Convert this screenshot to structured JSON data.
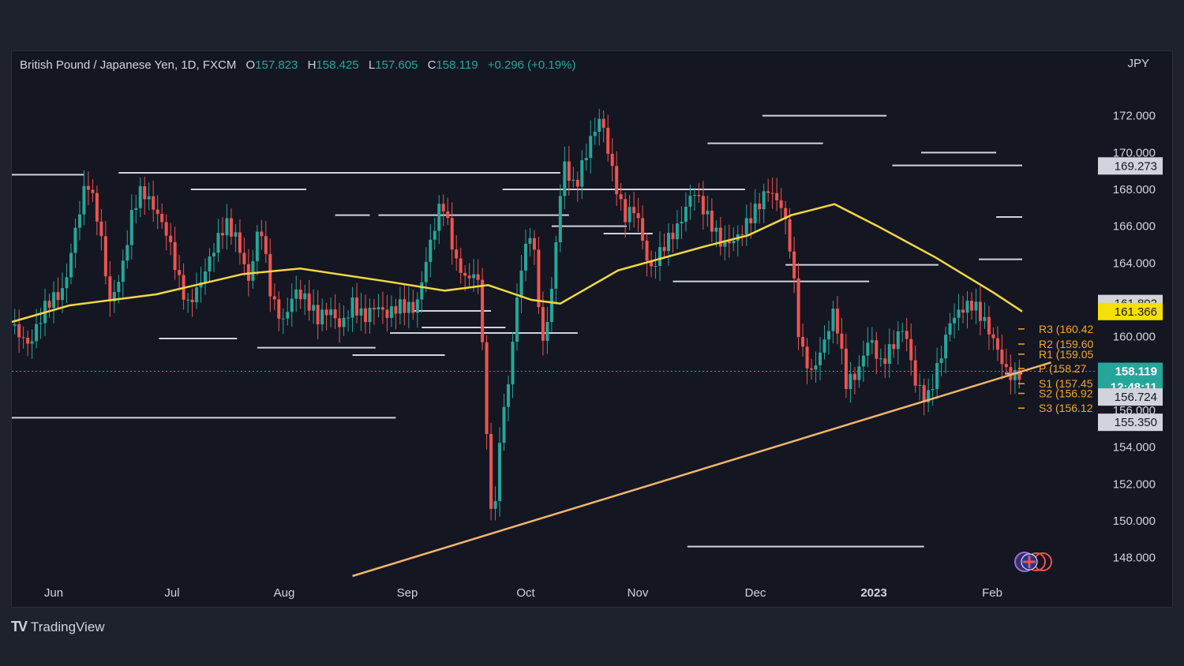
{
  "header": {
    "symbol": "British Pound / Japanese Yen, 1D, FXCM",
    "o_label": "O",
    "o_value": "157.823",
    "h_label": "H",
    "h_value": "158.425",
    "l_label": "L",
    "l_value": "157.605",
    "c_label": "C",
    "c_value": "158.119",
    "change": "+0.296 (+0.19%)"
  },
  "currency": "JPY",
  "brand": "TradingView",
  "colors": {
    "up": "#26a69a",
    "down": "#ef5350",
    "ma": "#f5d742",
    "trend": "#f3b56b",
    "pivot": "#f5a623",
    "bg": "#141722"
  },
  "chart_data": {
    "type": "candlestick",
    "instrument": "British Pound / Japanese Yen",
    "interval": "1D",
    "ylim": [
      147,
      174
    ],
    "y_ticks": [
      148,
      150,
      152,
      154,
      156,
      158,
      160,
      162,
      164,
      166,
      168,
      170,
      172
    ],
    "y_tick_labels": [
      "148.000",
      "150.000",
      "152.000",
      "154.000",
      "156.000",
      "158.000",
      "160.000",
      "162.000",
      "164.000",
      "166.000",
      "168.000",
      "170.000",
      "172.000"
    ],
    "x_months": [
      "Jun",
      "Jul",
      "Aug",
      "Sep",
      "Oct",
      "Nov",
      "Dec",
      "2023",
      "Feb"
    ],
    "price_points": [
      [
        0,
        160.6
      ],
      [
        6,
        159.5
      ],
      [
        12,
        161.8
      ],
      [
        18,
        162.5
      ],
      [
        22,
        165.8
      ],
      [
        26,
        168.6
      ],
      [
        30,
        166.3
      ],
      [
        34,
        161.8
      ],
      [
        38,
        163.5
      ],
      [
        42,
        167.0
      ],
      [
        45,
        168.0
      ],
      [
        50,
        166.8
      ],
      [
        54,
        165.5
      ],
      [
        58,
        163.0
      ],
      [
        61,
        161.7
      ],
      [
        65,
        162.8
      ],
      [
        70,
        164.8
      ],
      [
        74,
        166.2
      ],
      [
        78,
        165.3
      ],
      [
        82,
        163.0
      ],
      [
        86,
        166.3
      ],
      [
        90,
        162.0
      ],
      [
        94,
        160.8
      ],
      [
        98,
        162.5
      ],
      [
        102,
        162.0
      ],
      [
        106,
        161.0
      ],
      [
        110,
        161.5
      ],
      [
        114,
        160.5
      ],
      [
        118,
        161.8
      ],
      [
        122,
        161.0
      ],
      [
        126,
        161.7
      ],
      [
        130,
        161.2
      ],
      [
        134,
        161.7
      ],
      [
        140,
        161.5
      ],
      [
        144,
        164.5
      ],
      [
        149,
        167.5
      ],
      [
        154,
        164.0
      ],
      [
        158,
        163.0
      ],
      [
        161,
        163.8
      ],
      [
        163,
        160.0
      ],
      [
        165,
        152.5
      ],
      [
        167,
        149.5
      ],
      [
        169,
        154.5
      ],
      [
        172,
        157.5
      ],
      [
        176,
        163.5
      ],
      [
        180,
        166.0
      ],
      [
        184,
        159.5
      ],
      [
        187,
        162.5
      ],
      [
        191,
        169.5
      ],
      [
        195,
        168.0
      ],
      [
        200,
        170.5
      ],
      [
        204,
        172.0
      ],
      [
        208,
        169.0
      ],
      [
        212,
        166.5
      ],
      [
        216,
        167.0
      ],
      [
        221,
        163.5
      ],
      [
        226,
        165.0
      ],
      [
        231,
        166.0
      ],
      [
        236,
        168.0
      ],
      [
        241,
        166.5
      ],
      [
        246,
        165.0
      ],
      [
        251,
        165.3
      ],
      [
        256,
        166.5
      ],
      [
        262,
        168.0
      ],
      [
        267,
        167.0
      ],
      [
        270,
        164.5
      ],
      [
        273,
        159.5
      ],
      [
        277,
        158.0
      ],
      [
        281,
        159.5
      ],
      [
        285,
        161.5
      ],
      [
        289,
        157.5
      ],
      [
        293,
        158.0
      ],
      [
        297,
        160.0
      ],
      [
        301,
        158.5
      ],
      [
        305,
        159.5
      ],
      [
        309,
        160.6
      ],
      [
        313,
        157.5
      ],
      [
        317,
        156.5
      ],
      [
        321,
        158.5
      ],
      [
        325,
        160.8
      ],
      [
        329,
        161.5
      ],
      [
        333,
        161.8
      ],
      [
        337,
        160.8
      ],
      [
        341,
        159.5
      ],
      [
        344,
        158.2
      ],
      [
        347,
        157.8
      ],
      [
        350,
        158.12
      ]
    ],
    "moving_average": [
      [
        0,
        160.8
      ],
      [
        20,
        161.7
      ],
      [
        50,
        162.3
      ],
      [
        80,
        163.4
      ],
      [
        100,
        163.7
      ],
      [
        130,
        163.0
      ],
      [
        150,
        162.5
      ],
      [
        165,
        162.8
      ],
      [
        180,
        162.0
      ],
      [
        190,
        161.8
      ],
      [
        210,
        163.6
      ],
      [
        240,
        164.9
      ],
      [
        255,
        165.5
      ],
      [
        270,
        166.6
      ],
      [
        285,
        167.2
      ],
      [
        300,
        166.0
      ],
      [
        320,
        164.3
      ],
      [
        340,
        162.4
      ],
      [
        350,
        161.37
      ]
    ],
    "trendline": [
      [
        118,
        147.0
      ],
      [
        350,
        158.12
      ]
    ],
    "horizontal_levels": [
      158.119
    ],
    "price_labels": [
      {
        "text": "169.273",
        "value": 169.273
      },
      {
        "text": "161.802",
        "value": 161.802
      },
      {
        "text": "161.366",
        "value": 161.366
      },
      {
        "text": "158.119",
        "value": 158.119
      },
      {
        "text": "12:48:11",
        "value": 158.119
      },
      {
        "text": "156.724",
        "value": 156.724
      },
      {
        "text": "155.350",
        "value": 155.35
      }
    ],
    "pivots": [
      {
        "label": "R3 (160.42",
        "value": 160.42
      },
      {
        "label": "R2 (159.60",
        "value": 159.6
      },
      {
        "label": "R1 (159.05",
        "value": 159.05
      },
      {
        "label": "P (158.27",
        "value": 158.27
      },
      {
        "label": "S1 (157.45",
        "value": 157.45
      },
      {
        "label": "S2 (156.92",
        "value": 156.92
      },
      {
        "label": "S3 (156.12",
        "value": 156.12
      }
    ]
  }
}
